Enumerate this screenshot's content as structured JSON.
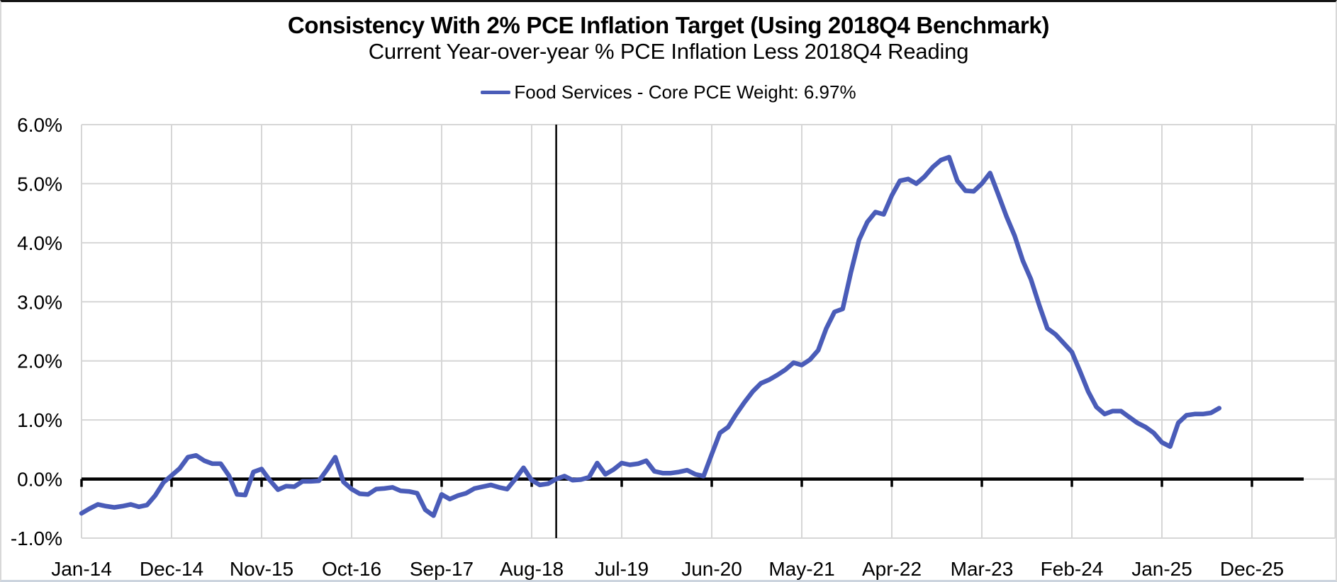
{
  "chart_data": {
    "type": "line",
    "title": "Consistency With 2% PCE Inflation Target (Using 2018Q4 Benchmark)",
    "subtitle": "Current Year-over-year % PCE Inflation Less 2018Q4 Reading",
    "legend": {
      "label": "Food Services - Core PCE Weight: 6.97%",
      "position": "top"
    },
    "x_axis": {
      "tick_labels": [
        "Jan-14",
        "Dec-14",
        "Nov-15",
        "Oct-16",
        "Sep-17",
        "Aug-18",
        "Jul-19",
        "Jun-20",
        "May-21",
        "Apr-22",
        "Mar-23",
        "Feb-24",
        "Jan-25",
        "Dec-25"
      ],
      "tick_month_indices": [
        0,
        11,
        22,
        33,
        44,
        55,
        66,
        77,
        88,
        99,
        110,
        121,
        132,
        143
      ],
      "start_month": "Jan-14",
      "end_month_of_data": "Aug-25"
    },
    "y_axis": {
      "tick_labels": [
        "6.0%",
        "5.0%",
        "4.0%",
        "3.0%",
        "2.0%",
        "1.0%",
        "0.0%",
        "-1.0%"
      ],
      "tick_values": [
        6,
        5,
        4,
        3,
        2,
        1,
        0,
        -1
      ],
      "min": -1,
      "max": 6,
      "unit": "percent"
    },
    "annotations": {
      "zero_axis_value": 0,
      "benchmark_vline_month_index": 58
    },
    "grid": true,
    "colors": {
      "line": "#4a5cb8",
      "gridline": "#d6d6d6",
      "axis": "#000000",
      "text": "#000000"
    },
    "series": [
      {
        "name": "Food Services - Core PCE Weight: 6.97%",
        "frequency": "monthly",
        "values": [
          -0.58,
          -0.5,
          -0.43,
          -0.46,
          -0.48,
          -0.46,
          -0.43,
          -0.47,
          -0.44,
          -0.28,
          -0.06,
          0.06,
          0.18,
          0.37,
          0.4,
          0.31,
          0.26,
          0.26,
          0.06,
          -0.26,
          -0.27,
          0.12,
          0.17,
          -0.02,
          -0.18,
          -0.12,
          -0.13,
          -0.04,
          -0.04,
          -0.03,
          0.16,
          0.37,
          -0.05,
          -0.17,
          -0.25,
          -0.26,
          -0.17,
          -0.16,
          -0.14,
          -0.2,
          -0.21,
          -0.24,
          -0.52,
          -0.62,
          -0.26,
          -0.34,
          -0.28,
          -0.24,
          -0.16,
          -0.13,
          -0.1,
          -0.14,
          -0.17,
          0.0,
          0.19,
          -0.02,
          -0.1,
          -0.08,
          0.0,
          0.05,
          -0.02,
          -0.01,
          0.03,
          0.27,
          0.08,
          0.16,
          0.27,
          0.24,
          0.26,
          0.31,
          0.13,
          0.1,
          0.1,
          0.12,
          0.15,
          0.08,
          0.05,
          0.42,
          0.78,
          0.88,
          1.1,
          1.3,
          1.48,
          1.62,
          1.68,
          1.76,
          1.85,
          1.97,
          1.93,
          2.02,
          2.18,
          2.55,
          2.83,
          2.88,
          3.5,
          4.05,
          4.35,
          4.52,
          4.48,
          4.8,
          5.05,
          5.08,
          5.0,
          5.12,
          5.28,
          5.4,
          5.45,
          5.05,
          4.88,
          4.87,
          5.0,
          5.18,
          4.82,
          4.45,
          4.12,
          3.7,
          3.38,
          2.95,
          2.55,
          2.45,
          2.3,
          2.15,
          1.82,
          1.48,
          1.22,
          1.1,
          1.15,
          1.15,
          1.05,
          0.95,
          0.88,
          0.78,
          0.62,
          0.55,
          0.95,
          1.08,
          1.1,
          1.1,
          1.12,
          1.2
        ]
      }
    ]
  }
}
